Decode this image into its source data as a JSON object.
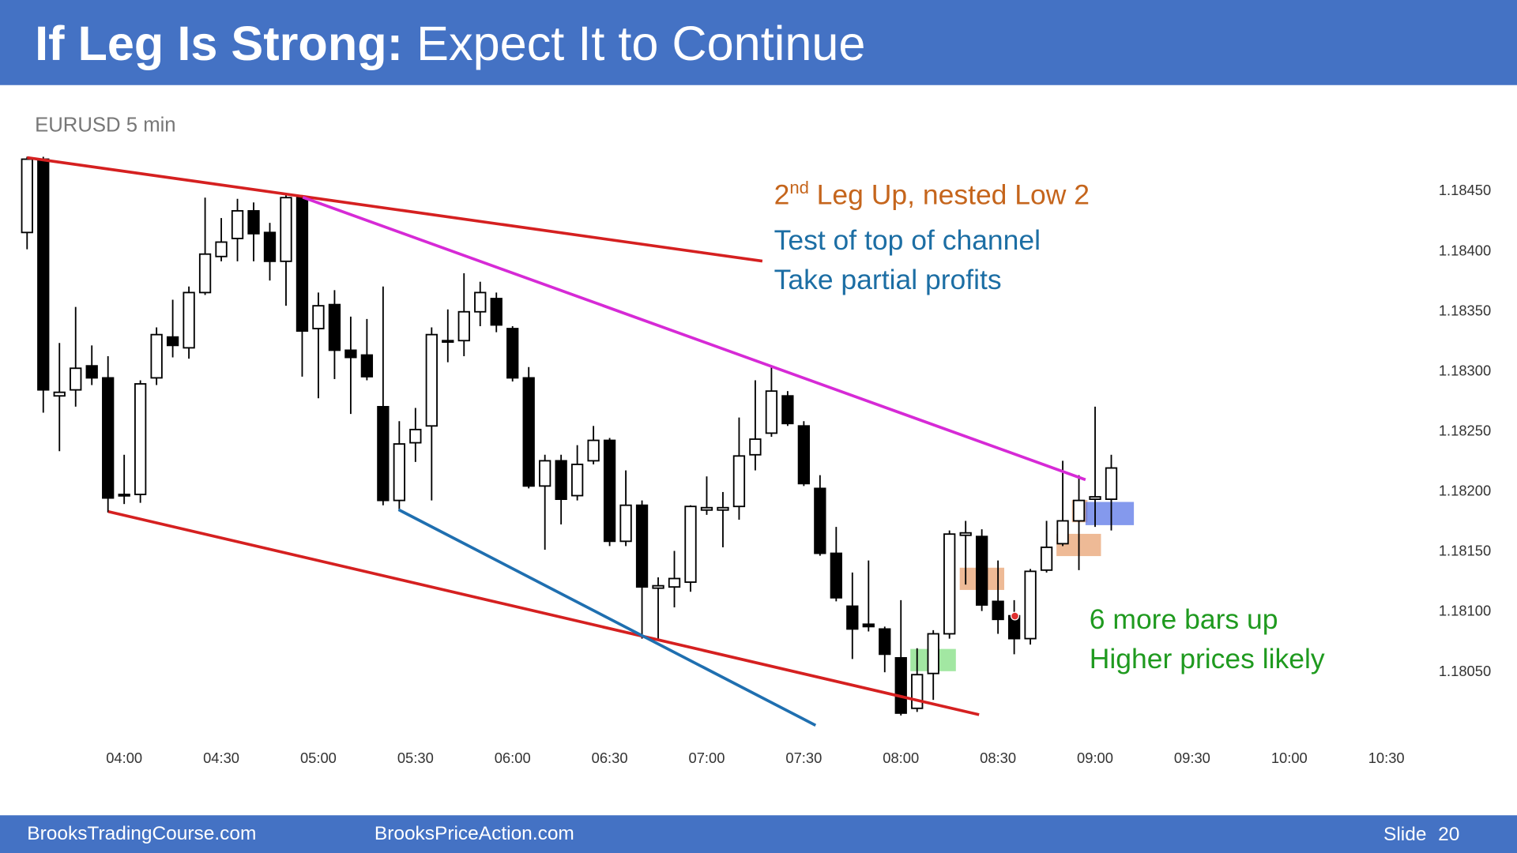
{
  "header": {
    "title_bold": "If Leg Is Strong:",
    "title_rest": "Expect It to Continue"
  },
  "footer": {
    "left": "BrooksTradingCourse.com",
    "center": "BrooksPriceAction.com",
    "slide_label": "Slide",
    "slide_number": 20
  },
  "chart_data": {
    "type": "candlestick",
    "subtitle": "EURUSD 5 min",
    "categories": [
      null,
      null,
      null,
      null,
      null,
      null,
      "04:00",
      null,
      null,
      null,
      null,
      null,
      "04:30",
      null,
      null,
      null,
      null,
      null,
      "05:00",
      null,
      null,
      null,
      null,
      null,
      "05:30",
      null,
      null,
      null,
      null,
      null,
      "06:00",
      null,
      null,
      null,
      null,
      null,
      "06:30",
      null,
      null,
      null,
      null,
      null,
      "07:00",
      null,
      null,
      null,
      null,
      null,
      "07:30",
      null,
      null,
      null,
      null,
      null,
      "08:00",
      null,
      null,
      null,
      null,
      null,
      "08:30",
      null,
      null,
      null,
      null,
      null,
      "09:00",
      null,
      null,
      null,
      null,
      null,
      "09:30",
      null,
      null,
      null,
      null,
      null,
      "10:00",
      null,
      null,
      null,
      null,
      null,
      "10:30"
    ],
    "open": [
      1.18415,
      1.18476,
      1.18279,
      1.18284,
      1.18304,
      1.18294,
      1.18196,
      1.18197,
      1.18294,
      1.18328,
      1.18319,
      1.18365,
      1.18395,
      1.1841,
      1.18433,
      1.18415,
      1.18391,
      1.18444,
      1.18335,
      1.18355,
      1.18317,
      1.18313,
      1.1827,
      1.18192,
      1.1824,
      1.18254,
      1.18324,
      1.18325,
      1.18349,
      1.1836,
      1.18335,
      1.18294,
      1.18204,
      1.18225,
      1.18196,
      1.18225,
      1.18242,
      1.18158,
      1.18188,
      1.18119,
      1.1812,
      1.18124,
      1.18184,
      1.18184,
      1.18187,
      1.1823,
      1.18248,
      1.18279,
      1.18254,
      1.18202,
      1.18148,
      1.18104,
      1.18089,
      1.18085,
      1.18061,
      1.18019,
      1.18048,
      1.18081,
      1.18163,
      1.18162,
      1.18108,
      1.18096,
      1.18077,
      1.18134,
      1.18156,
      1.18175,
      1.18193,
      1.18193,
      null,
      null,
      null,
      null,
      null,
      null,
      null,
      null,
      null,
      null,
      null,
      null,
      null,
      null,
      null,
      null,
      null
    ],
    "high": [
      1.18478,
      1.18478,
      1.18323,
      1.18353,
      1.18321,
      1.18312,
      1.1823,
      1.18292,
      1.18336,
      1.18359,
      1.1837,
      1.18444,
      1.18427,
      1.18443,
      1.1844,
      1.18423,
      1.18446,
      1.18445,
      1.18365,
      1.18367,
      1.18345,
      1.18343,
      1.1837,
      1.18258,
      1.18269,
      1.18336,
      1.18351,
      1.18381,
      1.18374,
      1.18365,
      1.18337,
      1.18303,
      1.1823,
      1.1823,
      1.18238,
      1.18254,
      1.18244,
      1.18217,
      1.18192,
      1.18128,
      1.1815,
      1.18188,
      1.18212,
      1.18199,
      1.18261,
      1.18292,
      1.18304,
      1.18283,
      1.18258,
      1.18213,
      1.1817,
      1.18132,
      1.18142,
      1.18087,
      1.18109,
      1.18069,
      1.18084,
      1.18167,
      1.18175,
      1.18168,
      1.18142,
      1.18109,
      1.18135,
      1.18175,
      1.18225,
      1.18213,
      1.1827,
      1.1823,
      null,
      null,
      null,
      null,
      null,
      null,
      null,
      null,
      null,
      null,
      null,
      null,
      null,
      null,
      null,
      null,
      null
    ],
    "low": [
      1.18401,
      1.18265,
      1.18233,
      1.1827,
      1.18288,
      1.18182,
      1.18189,
      1.1819,
      1.18288,
      1.18311,
      1.1831,
      1.18363,
      1.18391,
      1.18391,
      1.18391,
      1.18375,
      1.18354,
      1.18295,
      1.18277,
      1.18293,
      1.18264,
      1.18292,
      1.18188,
      1.18184,
      1.18224,
      1.18192,
      1.18307,
      1.18312,
      1.18337,
      1.18332,
      1.18291,
      1.18202,
      1.18151,
      1.18172,
      1.18192,
      1.18222,
      1.18154,
      1.18154,
      1.18077,
      1.18077,
      1.18103,
      1.18116,
      1.1818,
      1.18153,
      1.18176,
      1.18217,
      1.18245,
      1.18254,
      1.18204,
      1.18146,
      1.18108,
      1.1806,
      1.18083,
      1.18049,
      1.18013,
      1.18016,
      1.18026,
      1.18077,
      1.18122,
      1.181,
      1.18081,
      1.18064,
      1.18072,
      1.18132,
      1.18154,
      1.18134,
      1.1817,
      1.18167,
      null,
      null,
      null,
      null,
      null,
      null,
      null,
      null,
      null,
      null,
      null,
      null,
      null,
      null,
      null,
      null,
      null
    ],
    "close": [
      1.18476,
      1.18284,
      1.18282,
      1.18302,
      1.18294,
      1.18194,
      1.18197,
      1.18289,
      1.1833,
      1.18321,
      1.18365,
      1.18397,
      1.18407,
      1.18433,
      1.18414,
      1.18391,
      1.18444,
      1.18333,
      1.18354,
      1.18317,
      1.18311,
      1.18295,
      1.18192,
      1.18239,
      1.18251,
      1.1833,
      1.18325,
      1.18349,
      1.18365,
      1.18338,
      1.18294,
      1.18204,
      1.18225,
      1.18193,
      1.18222,
      1.18242,
      1.18158,
      1.18188,
      1.1812,
      1.18121,
      1.18127,
      1.18187,
      1.18186,
      1.18186,
      1.18229,
      1.18243,
      1.18283,
      1.18256,
      1.18206,
      1.18148,
      1.18111,
      1.18085,
      1.18087,
      1.18064,
      1.18015,
      1.18047,
      1.18081,
      1.18164,
      1.18165,
      1.18105,
      1.18093,
      1.18077,
      1.18133,
      1.18153,
      1.18175,
      1.18192,
      1.18195,
      1.18219,
      null,
      null,
      null,
      null,
      null,
      null,
      null,
      null,
      null,
      null,
      null,
      null,
      null,
      null,
      null,
      null,
      null
    ],
    "up_color": "#ffffff",
    "down_color": "#000000",
    "ylim": [
      1.18,
      1.18485
    ],
    "yticks": [
      {
        "value": 1.1805,
        "label": "1.18050"
      },
      {
        "value": 1.181,
        "label": "1.18100"
      },
      {
        "value": 1.1815,
        "label": "1.18150"
      },
      {
        "value": 1.182,
        "label": "1.18200"
      },
      {
        "value": 1.1825,
        "label": "1.18250"
      },
      {
        "value": 1.183,
        "label": "1.18300"
      },
      {
        "value": 1.1835,
        "label": "1.18350"
      },
      {
        "value": 1.184,
        "label": "1.18400"
      },
      {
        "value": 1.1845,
        "label": "1.18450"
      }
    ],
    "grid": false,
    "annotations": [
      {
        "parts": [
          "2",
          "nd",
          "Leg Up, nested Low 2"
        ],
        "color": "#c5651c"
      },
      {
        "lines": [
          "Test of top of channel",
          "Take partial profits"
        ],
        "color": "#1c6ea4"
      },
      {
        "lines": [
          "6 more bars up",
          "Higher prices likely"
        ],
        "color": "#1f9a1f"
      }
    ]
  }
}
